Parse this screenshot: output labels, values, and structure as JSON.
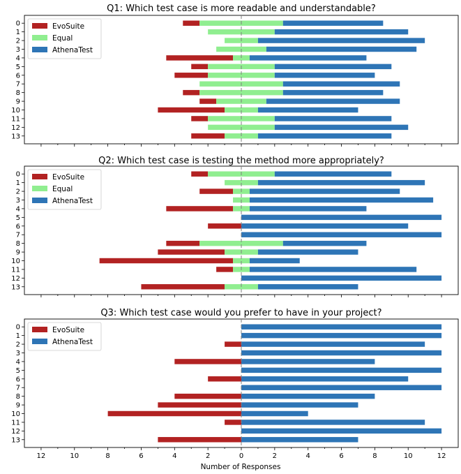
{
  "xlabel": "Number of Responses",
  "x_tick_labels": [
    "12",
    "10",
    "8",
    "6",
    "4",
    "2",
    "0",
    "2",
    "4",
    "6",
    "8",
    "10",
    "12"
  ],
  "colors": {
    "evosuite": "#b22222",
    "equal": "#90ee90",
    "athenatest": "#2e75b6",
    "divider": "#808080"
  },
  "chart_data": [
    {
      "type": "bar",
      "orientation": "horizontal-diverging",
      "title": "Q1: Which test case is more readable and understandable?",
      "categories": [
        "0",
        "1",
        "2",
        "3",
        "4",
        "5",
        "6",
        "7",
        "8",
        "9",
        "10",
        "11",
        "12",
        "13"
      ],
      "xlim": [
        -13,
        13
      ],
      "legend_position": "top-left",
      "series": [
        {
          "name": "EvoSuite",
          "values": [
            1,
            0,
            0,
            0,
            4,
            1,
            2,
            0,
            1,
            1,
            4,
            1,
            0,
            2
          ]
        },
        {
          "name": "Equal",
          "values": [
            5,
            4,
            2,
            3,
            1,
            4,
            4,
            5,
            5,
            3,
            2,
            4,
            4,
            2
          ]
        },
        {
          "name": "AthenaTest",
          "values": [
            6,
            8,
            10,
            9,
            7,
            7,
            6,
            7,
            6,
            8,
            6,
            7,
            8,
            8
          ]
        }
      ]
    },
    {
      "type": "bar",
      "orientation": "horizontal-diverging",
      "title": "Q2: Which test case is testing the method more appropriately?",
      "categories": [
        "0",
        "1",
        "2",
        "3",
        "4",
        "5",
        "6",
        "7",
        "8",
        "9",
        "10",
        "11",
        "12",
        "13"
      ],
      "xlim": [
        -13,
        13
      ],
      "legend_position": "top-left",
      "series": [
        {
          "name": "EvoSuite",
          "values": [
            1,
            0,
            2,
            0,
            4,
            0,
            2,
            0,
            2,
            4,
            8,
            1,
            0,
            5
          ]
        },
        {
          "name": "Equal",
          "values": [
            4,
            2,
            1,
            1,
            1,
            0,
            0,
            0,
            5,
            2,
            1,
            1,
            0,
            2
          ]
        },
        {
          "name": "AthenaTest",
          "values": [
            7,
            10,
            9,
            11,
            7,
            12,
            10,
            12,
            5,
            6,
            3,
            10,
            12,
            6
          ]
        }
      ]
    },
    {
      "type": "bar",
      "orientation": "horizontal-diverging",
      "title": "Q3: Which test case would you prefer to have in your project?",
      "categories": [
        "0",
        "1",
        "2",
        "3",
        "4",
        "5",
        "6",
        "7",
        "8",
        "9",
        "10",
        "11",
        "12",
        "13"
      ],
      "xlim": [
        -13,
        13
      ],
      "legend_position": "top-left",
      "series": [
        {
          "name": "EvoSuite",
          "values": [
            0,
            0,
            1,
            0,
            4,
            0,
            2,
            0,
            4,
            5,
            8,
            1,
            0,
            5
          ]
        },
        {
          "name": "AthenaTest",
          "values": [
            12,
            12,
            11,
            12,
            8,
            12,
            10,
            12,
            8,
            7,
            4,
            11,
            12,
            7
          ]
        }
      ]
    }
  ]
}
